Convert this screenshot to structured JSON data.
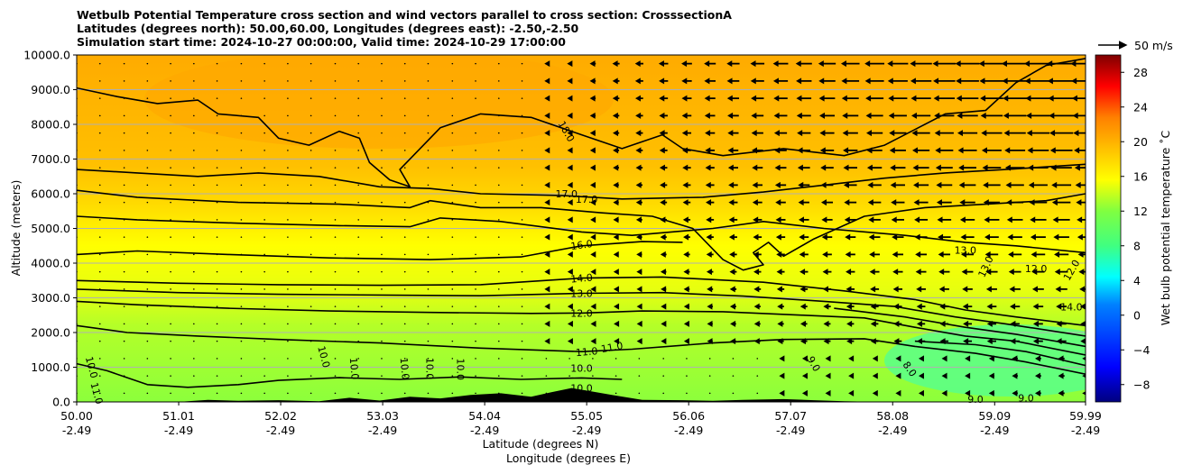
{
  "chart_data": {
    "type": "contour",
    "title_lines": [
      "Wetbulb Potential Temperature cross section and wind vectors parallel to cross section: CrosssectionA",
      "Latitudes (degrees north): 50.00,60.00, Longitudes (degrees east): -2.50,-2.50",
      "Simulation start time: 2024-10-27 00:00:00, Valid time: 2024-10-29 17:00:00"
    ],
    "ylabel": "Altitude (meters)",
    "xlabel_lines": [
      "Latitude (degrees N)",
      "Longitude (degrees E)"
    ],
    "ylim": [
      0,
      10000
    ],
    "xlim": [
      50.0,
      59.99
    ],
    "y_ticks": [
      "0.0",
      "1000.0",
      "2000.0",
      "3000.0",
      "4000.0",
      "5000.0",
      "6000.0",
      "7000.0",
      "8000.0",
      "9000.0",
      "10000.0"
    ],
    "y_tick_values": [
      0,
      1000,
      2000,
      3000,
      4000,
      5000,
      6000,
      7000,
      8000,
      9000,
      10000
    ],
    "x_ticks": [
      {
        "lat": "50.00",
        "lon": "-2.49",
        "v": 50.0
      },
      {
        "lat": "51.01",
        "lon": "-2.49",
        "v": 51.01
      },
      {
        "lat": "52.02",
        "lon": "-2.49",
        "v": 52.02
      },
      {
        "lat": "53.03",
        "lon": "-2.49",
        "v": 53.03
      },
      {
        "lat": "54.04",
        "lon": "-2.49",
        "v": 54.04
      },
      {
        "lat": "55.05",
        "lon": "-2.49",
        "v": 55.05
      },
      {
        "lat": "56.06",
        "lon": "-2.49",
        "v": 56.06
      },
      {
        "lat": "57.07",
        "lon": "-2.49",
        "v": 57.07
      },
      {
        "lat": "58.08",
        "lon": "-2.49",
        "v": 58.08
      },
      {
        "lat": "59.09",
        "lon": "-2.49",
        "v": 59.09
      },
      {
        "lat": "59.99",
        "lon": "-2.49",
        "v": 59.99
      }
    ],
    "grid": "horizontal",
    "colorbar": {
      "label": "Wet bulb potential temperature ˚C",
      "range": [
        -10,
        30
      ],
      "ticks": [
        "−8",
        "−4",
        "0",
        "4",
        "8",
        "12",
        "16",
        "20",
        "24",
        "28"
      ],
      "tick_values": [
        -8,
        -4,
        0,
        4,
        8,
        12,
        16,
        20,
        24,
        28
      ],
      "colors": [
        "#00007f",
        "#0000ff",
        "#0080ff",
        "#00ffff",
        "#40ff80",
        "#80ff40",
        "#ffff00",
        "#ffc000",
        "#ff8000",
        "#ff0000",
        "#7f0000"
      ]
    },
    "quiver_key": "50 m/s",
    "contour_labels": [
      {
        "text": "18.0",
        "lat": 54.85,
        "alt": 7800,
        "rot": 60
      },
      {
        "text": "17.0",
        "lat": 54.85,
        "alt": 6000,
        "rot": 0
      },
      {
        "text": "17.0",
        "lat": 55.05,
        "alt": 5850,
        "rot": 0
      },
      {
        "text": "16.0",
        "lat": 55.0,
        "alt": 4530,
        "rot": -8
      },
      {
        "text": "14.0",
        "lat": 55.0,
        "alt": 3570,
        "rot": -5
      },
      {
        "text": "13.0",
        "lat": 55.0,
        "alt": 3130,
        "rot": 0
      },
      {
        "text": "12.0",
        "lat": 55.0,
        "alt": 2560,
        "rot": 0
      },
      {
        "text": "11.0",
        "lat": 55.05,
        "alt": 1450,
        "rot": -5
      },
      {
        "text": "11.0",
        "lat": 55.3,
        "alt": 1580,
        "rot": -10
      },
      {
        "text": "10.0",
        "lat": 55.0,
        "alt": 970,
        "rot": 0
      },
      {
        "text": "10.0",
        "lat": 55.0,
        "alt": 400,
        "rot": 0
      },
      {
        "text": "10.0",
        "lat": 50.15,
        "alt": 1000,
        "rot": 75
      },
      {
        "text": "11.0",
        "lat": 50.2,
        "alt": 250,
        "rot": 75
      },
      {
        "text": "10.0",
        "lat": 52.75,
        "alt": 960,
        "rot": 85
      },
      {
        "text": "10.0",
        "lat": 53.25,
        "alt": 960,
        "rot": 85
      },
      {
        "text": "10.0",
        "lat": 53.5,
        "alt": 960,
        "rot": 90
      },
      {
        "text": "10.0",
        "lat": 53.8,
        "alt": 940,
        "rot": 90
      },
      {
        "text": "10.0",
        "lat": 52.45,
        "alt": 1300,
        "rot": 75
      },
      {
        "text": "9.0",
        "lat": 57.3,
        "alt": 1100,
        "rot": 60
      },
      {
        "text": "8.0",
        "lat": 58.25,
        "alt": 950,
        "rot": 55
      },
      {
        "text": "13.0",
        "lat": 58.8,
        "alt": 4380,
        "rot": 0
      },
      {
        "text": "13.0",
        "lat": 59.0,
        "alt": 3900,
        "rot": -65
      },
      {
        "text": "12.0",
        "lat": 59.5,
        "alt": 3850,
        "rot": 0
      },
      {
        "text": "12.0",
        "lat": 59.85,
        "alt": 3800,
        "rot": -60
      },
      {
        "text": "14.0",
        "lat": 59.85,
        "alt": 2740,
        "rot": 0
      },
      {
        "text": "9.0",
        "lat": 58.9,
        "alt": 80,
        "rot": 0
      },
      {
        "text": "9.0",
        "lat": 59.4,
        "alt": 120,
        "rot": 0
      }
    ],
    "contour_lines": [
      {
        "level": "10.0",
        "points": [
          [
            50,
            1100
          ],
          [
            50.3,
            900
          ],
          [
            50.5,
            700
          ],
          [
            50.7,
            500
          ],
          [
            51.1,
            420
          ],
          [
            51.6,
            500
          ],
          [
            52.0,
            620
          ],
          [
            52.6,
            700
          ],
          [
            53.2,
            650
          ],
          [
            53.8,
            720
          ],
          [
            54.4,
            650
          ],
          [
            55.0,
            690
          ],
          [
            55.4,
            650
          ]
        ]
      },
      {
        "level": "11.0",
        "points": [
          [
            50,
            2200
          ],
          [
            50.5,
            2000
          ],
          [
            51.2,
            1900
          ],
          [
            52.0,
            1800
          ],
          [
            53.0,
            1700
          ],
          [
            54.0,
            1550
          ],
          [
            55.0,
            1450
          ],
          [
            55.5,
            1520
          ],
          [
            56.3,
            1700
          ],
          [
            57.0,
            1800
          ],
          [
            57.8,
            1820
          ],
          [
            58.3,
            1600
          ],
          [
            58.9,
            1400
          ],
          [
            59.4,
            1150
          ],
          [
            59.99,
            800
          ]
        ]
      },
      {
        "level": "11.5",
        "points": [
          [
            58.3,
            1750
          ],
          [
            58.9,
            1650
          ],
          [
            59.4,
            1450
          ],
          [
            59.99,
            1050
          ]
        ]
      },
      {
        "level": "12.0",
        "points": [
          [
            50,
            2900
          ],
          [
            50.6,
            2800
          ],
          [
            51.5,
            2700
          ],
          [
            52.5,
            2620
          ],
          [
            53.5,
            2580
          ],
          [
            54.5,
            2550
          ],
          [
            55.0,
            2560
          ],
          [
            55.6,
            2620
          ],
          [
            56.4,
            2600
          ],
          [
            57.2,
            2500
          ],
          [
            57.8,
            2420
          ],
          [
            58.3,
            2150
          ],
          [
            58.8,
            1900
          ],
          [
            59.3,
            1750
          ],
          [
            59.99,
            1350
          ]
        ]
      },
      {
        "level": "12.5",
        "points": [
          [
            57.5,
            2700
          ],
          [
            58.2,
            2450
          ],
          [
            58.8,
            2150
          ],
          [
            59.3,
            1950
          ],
          [
            59.99,
            1600
          ]
        ]
      },
      {
        "level": "13.0",
        "points": [
          [
            50,
            3250
          ],
          [
            51.0,
            3150
          ],
          [
            52.0,
            3100
          ],
          [
            53.0,
            3080
          ],
          [
            54.0,
            3060
          ],
          [
            55.0,
            3130
          ],
          [
            55.8,
            3150
          ],
          [
            56.6,
            3050
          ],
          [
            57.4,
            2900
          ],
          [
            58.1,
            2750
          ],
          [
            58.7,
            2450
          ],
          [
            59.2,
            2250
          ],
          [
            59.99,
            1900
          ]
        ]
      },
      {
        "level": "13.5",
        "points": [
          [
            50,
            3500
          ],
          [
            51.0,
            3420
          ],
          [
            52.0,
            3380
          ],
          [
            53.0,
            3360
          ],
          [
            54.0,
            3380
          ],
          [
            55.0,
            3570
          ],
          [
            55.8,
            3600
          ],
          [
            56.8,
            3450
          ],
          [
            57.6,
            3200
          ],
          [
            58.3,
            2950
          ],
          [
            58.8,
            2650
          ],
          [
            59.3,
            2450
          ],
          [
            59.99,
            2200
          ]
        ]
      },
      {
        "level": "15.0",
        "points": [
          [
            50,
            4250
          ],
          [
            50.6,
            4350
          ],
          [
            51.5,
            4250
          ],
          [
            52.5,
            4150
          ],
          [
            53.5,
            4100
          ],
          [
            54.4,
            4180
          ],
          [
            55.0,
            4500
          ],
          [
            55.6,
            4620
          ],
          [
            56.0,
            4600
          ]
        ]
      },
      {
        "level": "16.0",
        "points": [
          [
            50,
            5350
          ],
          [
            50.6,
            5250
          ],
          [
            51.6,
            5150
          ],
          [
            52.6,
            5080
          ],
          [
            53.3,
            5050
          ],
          [
            53.6,
            5300
          ],
          [
            54.2,
            5200
          ],
          [
            55.0,
            4900
          ],
          [
            55.5,
            4800
          ],
          [
            56.3,
            5000
          ],
          [
            56.8,
            5200
          ],
          [
            57.4,
            5000
          ],
          [
            58.2,
            4800
          ],
          [
            58.8,
            4600
          ],
          [
            59.3,
            4500
          ],
          [
            59.99,
            4300
          ]
        ]
      },
      {
        "level": "16.5",
        "points": [
          [
            50,
            6100
          ],
          [
            50.6,
            5900
          ],
          [
            51.6,
            5750
          ],
          [
            52.6,
            5700
          ],
          [
            53.3,
            5600
          ],
          [
            53.5,
            5800
          ],
          [
            54.0,
            5600
          ],
          [
            54.6,
            5600
          ],
          [
            55.2,
            5450
          ],
          [
            55.7,
            5350
          ],
          [
            56.1,
            5000
          ],
          [
            56.4,
            4100
          ],
          [
            56.6,
            3800
          ],
          [
            56.8,
            3950
          ],
          [
            56.7,
            4300
          ],
          [
            56.85,
            4600
          ],
          [
            57.0,
            4200
          ],
          [
            57.3,
            4700
          ],
          [
            57.8,
            5350
          ],
          [
            58.4,
            5600
          ],
          [
            59.0,
            5700
          ],
          [
            59.6,
            5800
          ],
          [
            59.99,
            6000
          ]
        ]
      },
      {
        "level": "17.0",
        "points": [
          [
            50,
            6700
          ],
          [
            50.6,
            6600
          ],
          [
            51.2,
            6500
          ],
          [
            51.8,
            6600
          ],
          [
            52.4,
            6500
          ],
          [
            53.0,
            6200
          ],
          [
            53.5,
            6150
          ],
          [
            54.0,
            6000
          ],
          [
            54.8,
            5950
          ],
          [
            55.4,
            5850
          ],
          [
            56.2,
            5900
          ],
          [
            56.8,
            6050
          ],
          [
            57.4,
            6250
          ],
          [
            58.0,
            6450
          ],
          [
            58.6,
            6600
          ],
          [
            59.2,
            6700
          ],
          [
            59.99,
            6850
          ]
        ]
      },
      {
        "level": "18.0",
        "points": [
          [
            50,
            9050
          ],
          [
            50.4,
            8800
          ],
          [
            50.8,
            8600
          ],
          [
            51.2,
            8700
          ],
          [
            51.4,
            8300
          ],
          [
            51.8,
            8200
          ],
          [
            52.0,
            7600
          ],
          [
            52.3,
            7400
          ],
          [
            52.6,
            7800
          ],
          [
            52.8,
            7600
          ],
          [
            52.9,
            6900
          ],
          [
            53.1,
            6400
          ],
          [
            53.3,
            6200
          ],
          [
            53.2,
            6700
          ],
          [
            53.6,
            7900
          ],
          [
            54.0,
            8300
          ],
          [
            54.5,
            8200
          ],
          [
            55.0,
            7700
          ],
          [
            55.4,
            7300
          ],
          [
            55.8,
            7700
          ],
          [
            56.0,
            7300
          ],
          [
            56.4,
            7100
          ],
          [
            57.0,
            7300
          ],
          [
            57.6,
            7100
          ],
          [
            58.0,
            7400
          ],
          [
            58.6,
            8300
          ],
          [
            59.0,
            8400
          ],
          [
            59.3,
            9200
          ],
          [
            59.6,
            9700
          ],
          [
            59.99,
            9900
          ]
        ]
      }
    ],
    "terrain_profile": [
      [
        50,
        0
      ],
      [
        51.0,
        0
      ],
      [
        51.3,
        60
      ],
      [
        51.6,
        30
      ],
      [
        52.0,
        50
      ],
      [
        52.4,
        20
      ],
      [
        52.7,
        120
      ],
      [
        53.0,
        40
      ],
      [
        53.3,
        150
      ],
      [
        53.6,
        100
      ],
      [
        53.9,
        200
      ],
      [
        54.2,
        250
      ],
      [
        54.5,
        150
      ],
      [
        54.7,
        280
      ],
      [
        54.9,
        400
      ],
      [
        55.1,
        300
      ],
      [
        55.3,
        200
      ],
      [
        55.6,
        60
      ],
      [
        56.0,
        50
      ],
      [
        56.3,
        30
      ],
      [
        56.6,
        60
      ],
      [
        57.0,
        80
      ],
      [
        57.3,
        50
      ],
      [
        57.6,
        20
      ],
      [
        58.0,
        0
      ],
      [
        59.99,
        0
      ]
    ],
    "wind_field_note": "",
    "wind_rows_alt": [
      250,
      750,
      1250,
      1750,
      2250,
      2750,
      3250,
      3750,
      4250,
      4750,
      5250,
      5750,
      6250,
      6750,
      7250,
      7750,
      8250,
      8750,
      9250,
      9750
    ],
    "wind_cols_lat": [
      50.0,
      50.23,
      50.47,
      50.7,
      50.93,
      51.16,
      51.39,
      51.63,
      51.86,
      52.09,
      52.32,
      52.56,
      52.79,
      53.02,
      53.25,
      53.48,
      53.72,
      53.95,
      54.18,
      54.41,
      54.65,
      54.88,
      55.11,
      55.34,
      55.57,
      55.81,
      56.04,
      56.27,
      56.5,
      56.74,
      56.97,
      57.2,
      57.43,
      57.66,
      57.9,
      58.13,
      58.36,
      58.59,
      58.82,
      59.06,
      59.29,
      59.52,
      59.75,
      59.99
    ]
  }
}
